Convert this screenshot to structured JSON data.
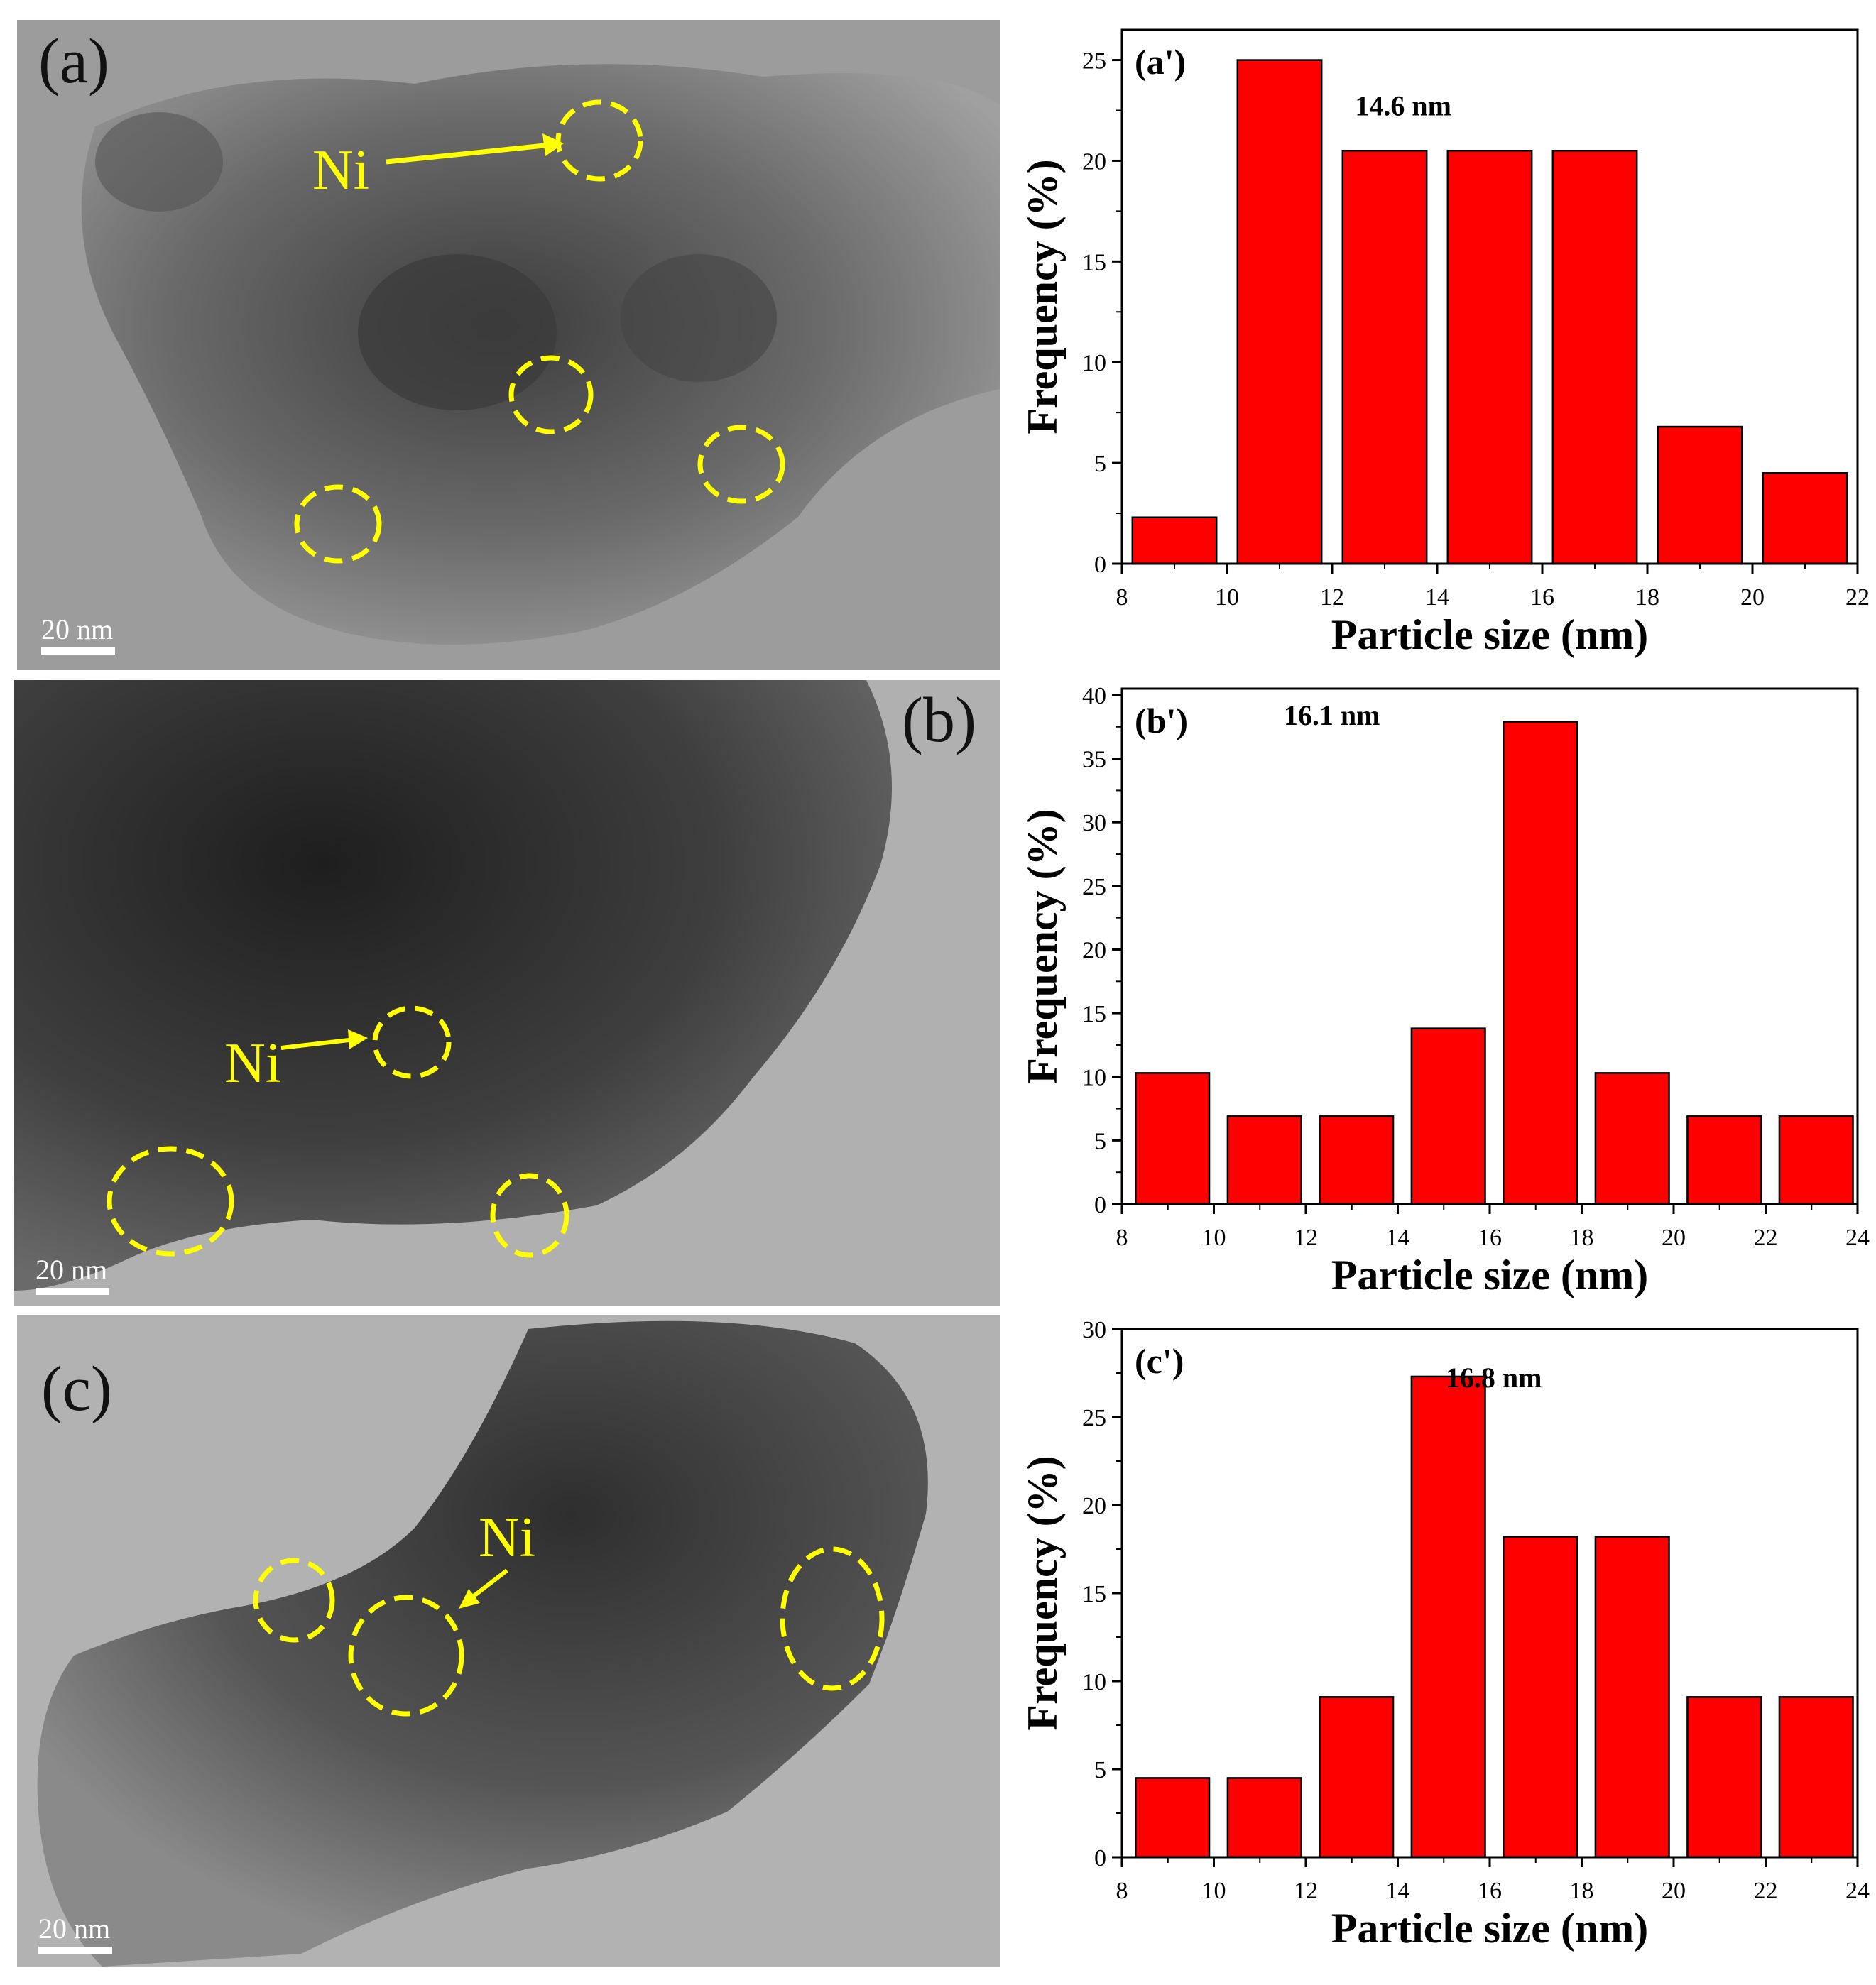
{
  "tem_panels": [
    {
      "label": "(a)",
      "ni_label": "Ni",
      "scale_text": "20 nm"
    },
    {
      "label": "(b)",
      "ni_label": "Ni",
      "scale_text": "20 nm"
    },
    {
      "label": "(c)",
      "ni_label": "Ni",
      "scale_text": "20 nm"
    }
  ],
  "colors": {
    "bar": "#ff0000",
    "circle": "#ffff00"
  },
  "chart_data": [
    {
      "type": "bar",
      "panel_label": "(a')",
      "annotation": "14.6 nm",
      "xlabel": "Particle size (nm)",
      "ylabel": "Frequency (%)",
      "xlim": [
        8,
        22
      ],
      "ylim": [
        0,
        26.5
      ],
      "xticks": [
        8,
        10,
        12,
        14,
        16,
        18,
        20,
        22
      ],
      "yticks": [
        0,
        5,
        10,
        15,
        20,
        25
      ],
      "bars": [
        {
          "x0": 8.2,
          "x1": 9.8,
          "value": 2.3
        },
        {
          "x0": 10.2,
          "x1": 11.8,
          "value": 25.0
        },
        {
          "x0": 12.2,
          "x1": 13.8,
          "value": 20.5
        },
        {
          "x0": 14.2,
          "x1": 15.8,
          "value": 20.5
        },
        {
          "x0": 16.2,
          "x1": 17.8,
          "value": 20.5
        },
        {
          "x0": 18.2,
          "x1": 19.8,
          "value": 6.8
        },
        {
          "x0": 20.2,
          "x1": 21.8,
          "value": 4.5
        }
      ]
    },
    {
      "type": "bar",
      "panel_label": "(b')",
      "annotation": "16.1 nm",
      "xlabel": "Particle size (nm)",
      "ylabel": "Frequency (%)",
      "xlim": [
        8,
        24
      ],
      "ylim": [
        0,
        40.5
      ],
      "xticks": [
        8,
        10,
        12,
        14,
        16,
        18,
        20,
        22,
        24
      ],
      "yticks": [
        0,
        5,
        10,
        15,
        20,
        25,
        30,
        35,
        40
      ],
      "bars": [
        {
          "x0": 8.3,
          "x1": 9.9,
          "value": 10.3
        },
        {
          "x0": 10.3,
          "x1": 11.9,
          "value": 6.9
        },
        {
          "x0": 12.3,
          "x1": 13.9,
          "value": 6.9
        },
        {
          "x0": 14.3,
          "x1": 15.9,
          "value": 13.8
        },
        {
          "x0": 16.3,
          "x1": 17.9,
          "value": 37.9
        },
        {
          "x0": 18.3,
          "x1": 19.9,
          "value": 10.3
        },
        {
          "x0": 20.3,
          "x1": 21.9,
          "value": 6.9
        },
        {
          "x0": 22.3,
          "x1": 23.9,
          "value": 6.9
        }
      ]
    },
    {
      "type": "bar",
      "panel_label": "(c')",
      "annotation": "16.8 nm",
      "xlabel": "Particle size (nm)",
      "ylabel": "Frequency (%)",
      "xlim": [
        8,
        24
      ],
      "ylim": [
        0,
        30
      ],
      "xticks": [
        8,
        10,
        12,
        14,
        16,
        18,
        20,
        22,
        24
      ],
      "yticks": [
        0,
        5,
        10,
        15,
        20,
        25,
        30
      ],
      "bars": [
        {
          "x0": 8.3,
          "x1": 9.9,
          "value": 4.5
        },
        {
          "x0": 10.3,
          "x1": 11.9,
          "value": 4.5
        },
        {
          "x0": 12.3,
          "x1": 13.9,
          "value": 9.1
        },
        {
          "x0": 14.3,
          "x1": 15.9,
          "value": 27.3
        },
        {
          "x0": 16.3,
          "x1": 17.9,
          "value": 18.2
        },
        {
          "x0": 18.3,
          "x1": 19.9,
          "value": 18.2
        },
        {
          "x0": 20.3,
          "x1": 21.9,
          "value": 9.1
        },
        {
          "x0": 22.3,
          "x1": 23.9,
          "value": 9.1
        }
      ]
    }
  ]
}
